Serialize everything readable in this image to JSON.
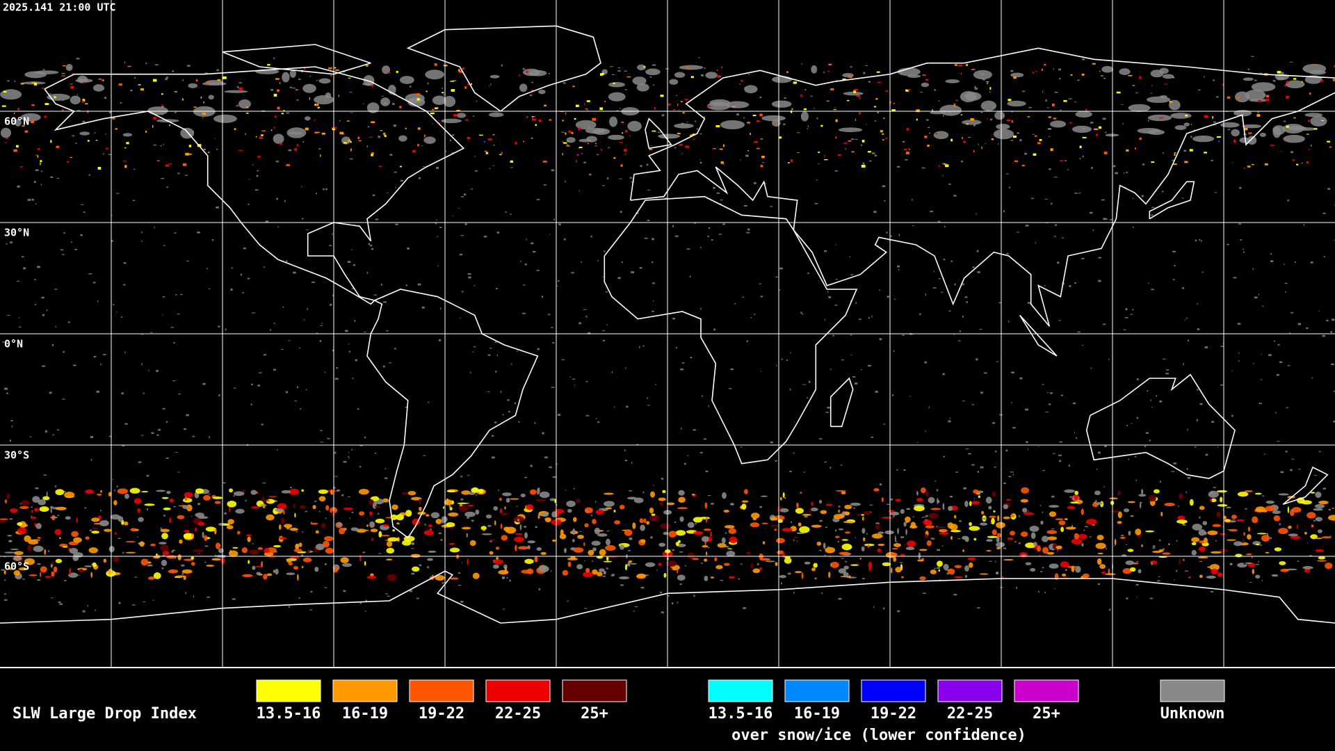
{
  "header": {
    "timestamp": "2025.141 21:00 UTC"
  },
  "map": {
    "latitude_labels": [
      "60°N",
      "30°N",
      "0°N",
      "30°S",
      "60°S"
    ]
  },
  "legend": {
    "title": "SLW Large Drop Index",
    "items": [
      {
        "label": "13.5-16",
        "color": "#ffff00"
      },
      {
        "label": "16-19",
        "color": "#ff9900"
      },
      {
        "label": "19-22",
        "color": "#ff5500"
      },
      {
        "label": "22-25",
        "color": "#ee0000"
      },
      {
        "label": "25+",
        "color": "#660000"
      }
    ],
    "snow_items": [
      {
        "label": "13.5-16",
        "color": "#00ffff"
      },
      {
        "label": "16-19",
        "color": "#0088ff"
      },
      {
        "label": "19-22",
        "color": "#0000ff"
      },
      {
        "label": "22-25",
        "color": "#8800ee"
      },
      {
        "label": "25+",
        "color": "#cc00cc"
      }
    ],
    "snow_note": "over snow/ice (lower confidence)",
    "unknown": {
      "label": "Unknown",
      "color": "#888888"
    }
  }
}
